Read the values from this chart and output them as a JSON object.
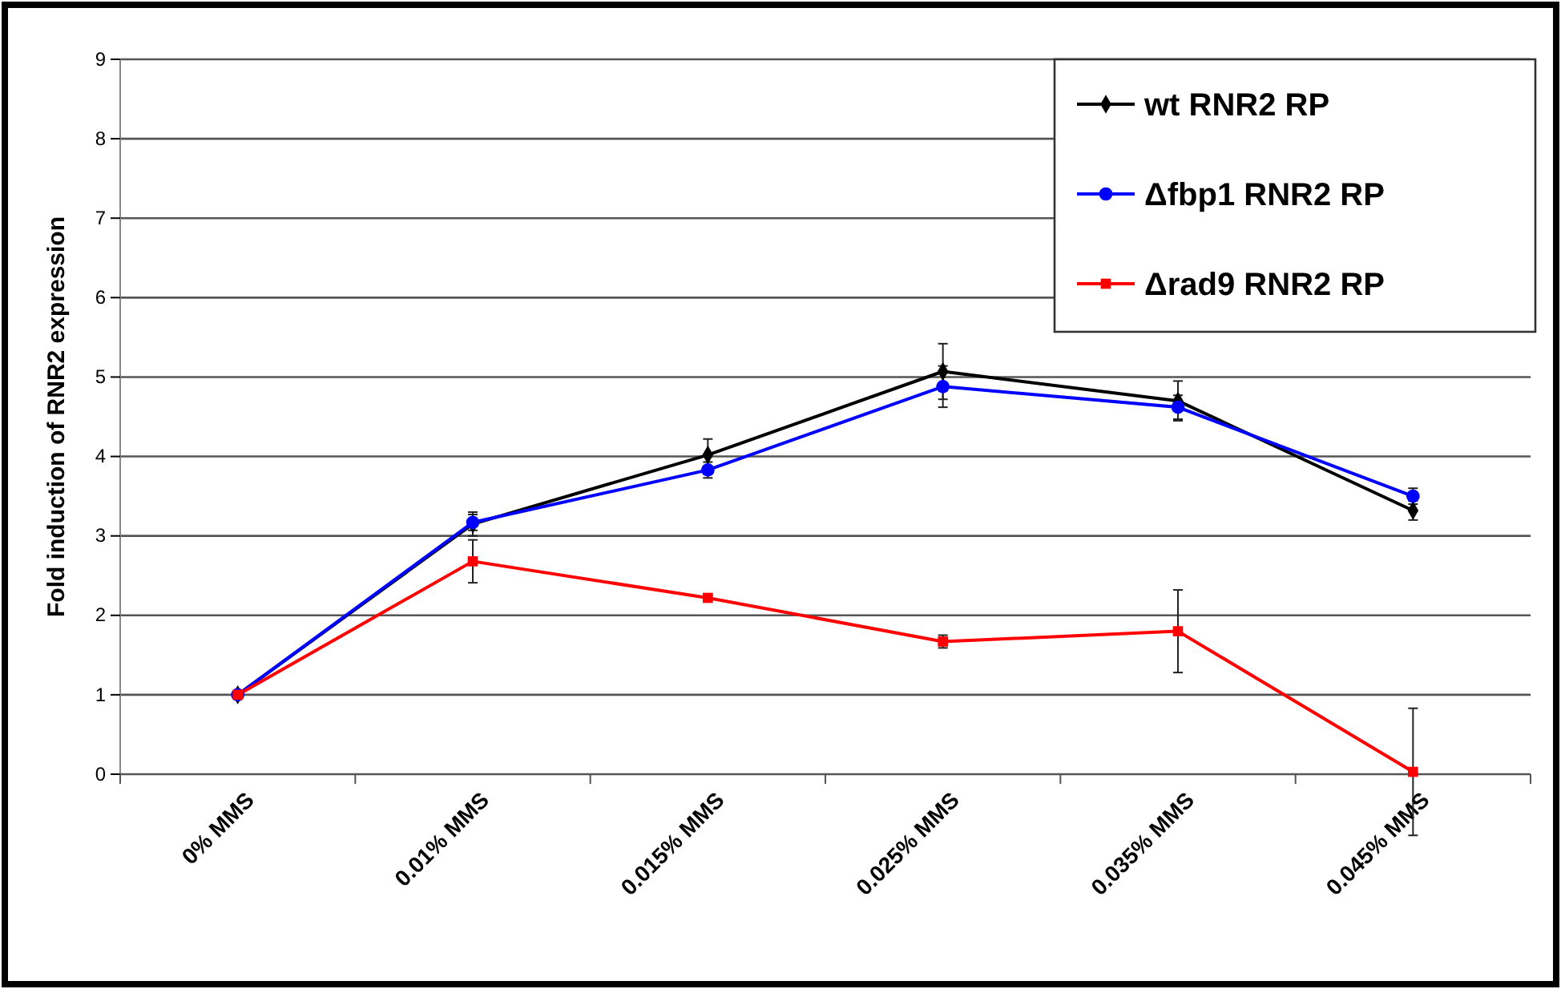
{
  "chart_data": {
    "type": "line",
    "ylabel": "Fold induction of RNR2 expression",
    "categories": [
      "0% MMS",
      "0.01% MMS",
      "0.015% MMS",
      "0.025% MMS",
      "0.035% MMS",
      "0.045% MMS"
    ],
    "series": [
      {
        "name": "wt RNR2 RP",
        "color": "#000000",
        "marker": "diamond",
        "values": [
          1.0,
          3.15,
          4.02,
          5.07,
          4.7,
          3.32
        ],
        "errors": [
          null,
          0.15,
          0.2,
          0.35,
          0.25,
          0.12
        ]
      },
      {
        "name": "Δfbp1 RNR2 RP",
        "color": "#0000ff",
        "marker": "circle",
        "values": [
          1.0,
          3.17,
          3.83,
          4.88,
          4.62,
          3.5
        ],
        "errors": [
          null,
          0.1,
          0.1,
          0.26,
          0.15,
          0.1
        ]
      },
      {
        "name": "Δrad9 RNR2 RP",
        "color": "#ff0000",
        "marker": "square",
        "values": [
          1.0,
          2.68,
          2.22,
          1.67,
          1.8,
          0.03
        ],
        "errors": [
          null,
          0.27,
          0.03,
          0.08,
          0.52,
          0.8
        ]
      }
    ],
    "ylim": [
      0,
      9
    ],
    "yticks": [
      0,
      1,
      2,
      3,
      4,
      5,
      6,
      7,
      8,
      9
    ],
    "grid": "y",
    "legend": "top right",
    "line_style": "solid"
  }
}
